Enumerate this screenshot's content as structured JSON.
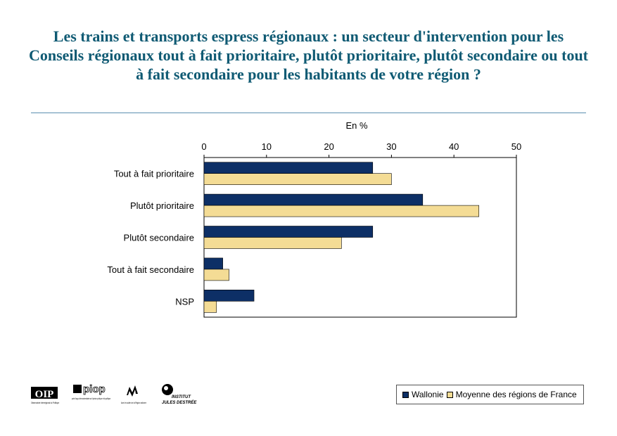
{
  "title": "Les trains et transports espress régionaux : un secteur d'intervention pour les Conseils régionaux tout à fait prioritaire, plutôt prioritaire, plutôt secondaire ou tout à fait secondaire pour les habitants de votre région ?",
  "colors": {
    "title": "#0f5a73",
    "wallonie": "#0d2f66",
    "france": "#f4dc95"
  },
  "chart_data": {
    "type": "bar",
    "orientation": "horizontal",
    "axis_title": "En %",
    "xlim": [
      0,
      50
    ],
    "ticks": [
      "0",
      "10",
      "20",
      "30",
      "40",
      "50"
    ],
    "categories": [
      "Tout à fait prioritaire",
      "Plutôt prioritaire",
      "Plutôt secondaire",
      "Tout à fait secondaire",
      "NSP"
    ],
    "series": [
      {
        "name": "Wallonie",
        "color": "#0d2f66",
        "values": [
          27,
          35,
          27,
          3,
          8
        ]
      },
      {
        "name": "Moyenne des régions de France",
        "color": "#f4dc95",
        "values": [
          30,
          44,
          22,
          4,
          2
        ]
      }
    ],
    "legend_position": "bottom-right",
    "grid": false
  },
  "logos": {
    "oip": "OIP",
    "oip_sub": "Observatoire Interrégional du Politique",
    "piop": "piop",
    "piop_sub": "point d'appui interuniversitaire sur l'opinion publique et la politique",
    "wallonie_sub": "Avec le soutien de la Région wallonne",
    "ijd_line1": "INSTITUT",
    "ijd_line2": "JULES DESTRÉE"
  }
}
